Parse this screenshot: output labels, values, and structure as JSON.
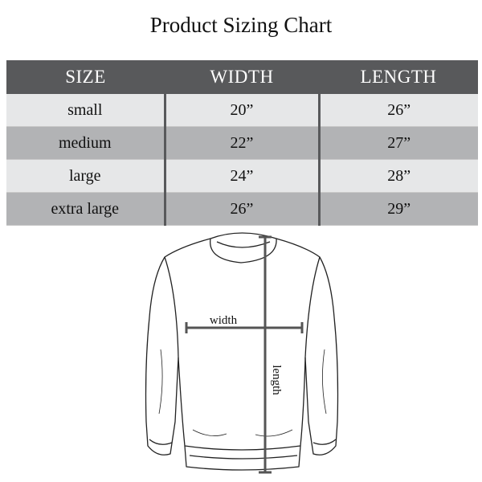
{
  "title": "Product Sizing Chart",
  "table": {
    "headers": [
      "SIZE",
      "WIDTH",
      "LENGTH"
    ],
    "rows": [
      {
        "size": "small",
        "width": "20”",
        "length": "26”"
      },
      {
        "size": "medium",
        "width": "22”",
        "length": "27”"
      },
      {
        "size": "large",
        "width": "24”",
        "length": "28”"
      },
      {
        "size": "extra large",
        "width": "26”",
        "length": "29”"
      }
    ]
  },
  "diagram": {
    "width_label": "width",
    "length_label": "length"
  },
  "colors": {
    "header_bg": "#58595b",
    "row_light": "#e6e7e8",
    "row_dark": "#b2b3b5"
  }
}
